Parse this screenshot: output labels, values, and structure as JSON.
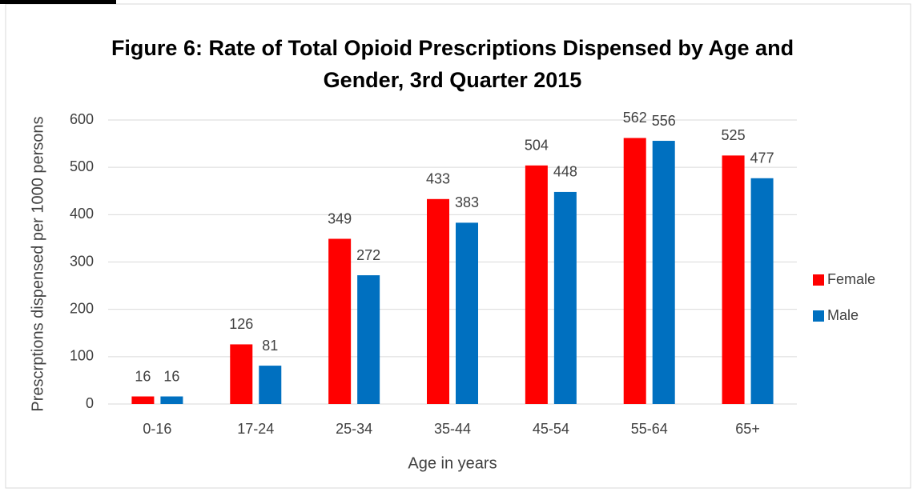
{
  "chart_data": {
    "type": "bar",
    "title": "Figure 6:  Rate of Total Opioid Prescriptions Dispensed by Age and Gender, 3rd Quarter 2015",
    "x_label": "Age in years",
    "y_label": "Prescrptions dispensed per 1000 persons",
    "categories": [
      "0-16",
      "17-24",
      "25-34",
      "35-44",
      "45-54",
      "55-64",
      "65+"
    ],
    "series": [
      {
        "name": "Female",
        "color": "#ff0000",
        "values": [
          16,
          126,
          349,
          433,
          504,
          562,
          525
        ]
      },
      {
        "name": "Male",
        "color": "#0070c0",
        "values": [
          16,
          81,
          272,
          383,
          448,
          556,
          477
        ]
      }
    ],
    "ylim": [
      0,
      600
    ],
    "yticks": [
      0,
      100,
      200,
      300,
      400,
      500,
      600
    ],
    "grid": true,
    "legend": "right"
  }
}
